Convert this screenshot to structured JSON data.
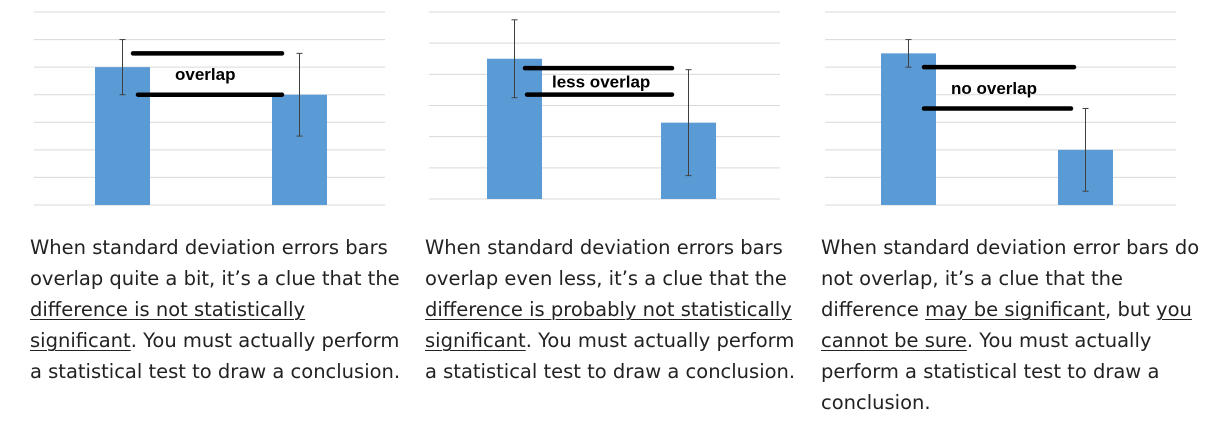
{
  "colors": {
    "bar": "#5b9bd5",
    "grid": "#d9d9d9",
    "error_bar": "#404040",
    "overlap_line": "#000000"
  },
  "chart_data": [
    {
      "type": "bar",
      "title": "",
      "xlabel": "",
      "ylabel": "",
      "ylim": [
        0,
        7
      ],
      "grid": true,
      "gridlines_count": 7,
      "values": [
        5.0,
        4.0
      ],
      "error": [
        1.0,
        1.5
      ],
      "annotation": "overlap",
      "overlap_lines_at": [
        5.5,
        4.0
      ]
    },
    {
      "type": "bar",
      "title": "",
      "xlabel": "",
      "ylabel": "",
      "ylim": [
        0,
        6
      ],
      "grid": true,
      "gridlines_count": 6,
      "values": [
        4.5,
        2.45
      ],
      "error": [
        1.25,
        1.7
      ],
      "annotation": "less overlap",
      "overlap_lines_at": [
        4.2,
        3.35
      ]
    },
    {
      "type": "bar",
      "title": "",
      "xlabel": "",
      "ylabel": "",
      "ylim": [
        0,
        7
      ],
      "grid": true,
      "gridlines_count": 7,
      "values": [
        5.5,
        2.0
      ],
      "error": [
        0.5,
        1.5
      ],
      "annotation": "no overlap",
      "overlap_lines_at": [
        5.0,
        3.5
      ]
    }
  ],
  "captions": [
    [
      {
        "t": "When standard deviation errors bars ",
        "u": false
      },
      {
        "t": "overlap quite a bit, it’s a clue that the ",
        "u": false
      },
      {
        "t": "difference is not statistically",
        "u": true
      },
      {
        "t": " ",
        "u": false
      },
      {
        "t": "significant",
        "u": true
      },
      {
        "t": ".  You must actually perform a statistical test to draw a conclusion.",
        "u": false
      }
    ],
    [
      {
        "t": "When standard deviation errors bars overlap even less, it’s a clue that the ",
        "u": false
      },
      {
        "t": "difference is probably not statistically significant",
        "u": true
      },
      {
        "t": ".  You must actually perform a statistical test to draw a conclusion.",
        "u": false
      }
    ],
    [
      {
        "t": "When standard deviation error bars do not overlap, it’s a clue that the difference ",
        "u": false
      },
      {
        "t": "may be significant",
        "u": true
      },
      {
        "t": ", but ",
        "u": false
      },
      {
        "t": "you cannot be sure",
        "u": true
      },
      {
        "t": ".  You must actually perform a statistical test to draw a conclusion.",
        "u": false
      }
    ]
  ]
}
